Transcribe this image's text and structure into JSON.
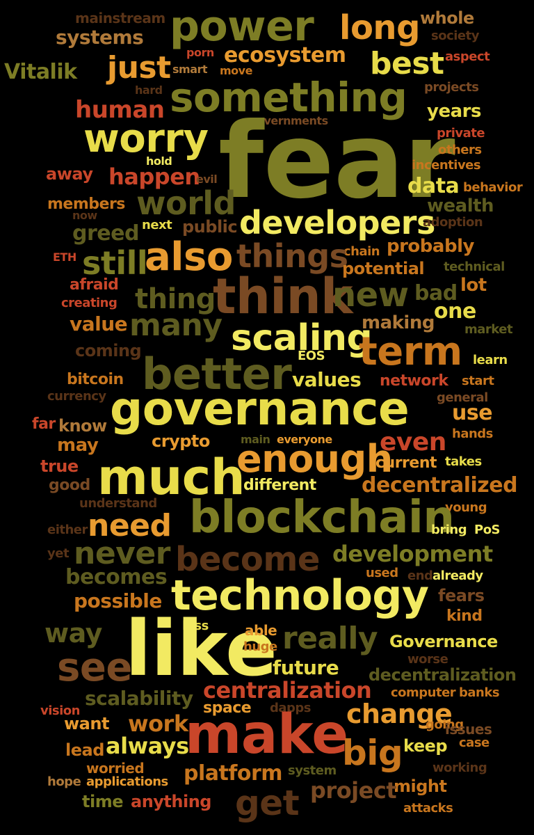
{
  "palette": {
    "background": "#000000",
    "olive": "#7d7d25",
    "dark_olive": "#5e5c20",
    "yellow": "#e8dc4a",
    "light_yellow": "#f2ea62",
    "orange": "#e89b30",
    "dark_orange": "#c8761e",
    "red_orange": "#c9462a",
    "brown": "#7a4a24",
    "tan": "#b07a3a",
    "dark_brown": "#5a3418"
  },
  "words": [
    "mainstream",
    "whole",
    "power",
    "long",
    "systems",
    "society",
    "porn",
    "ecosystem",
    "aspect",
    "Vitalik",
    "smart",
    "move",
    "just",
    "best",
    "something",
    "hard",
    "projects",
    "human",
    "years",
    "governments",
    "worry",
    "fear",
    "private",
    "others",
    "hold",
    "away",
    "incentives",
    "happen",
    "evil",
    "data",
    "behavior",
    "members",
    "world",
    "wealth",
    "now",
    "developers",
    "greed",
    "next",
    "public",
    "adoption",
    "chain",
    "probably",
    "ETH",
    "still",
    "also",
    "things",
    "potential",
    "technical",
    "afraid",
    "lot",
    "thing",
    "think",
    "creating",
    "new",
    "bad",
    "one",
    "value",
    "many",
    "making",
    "market",
    "scaling",
    "coming",
    "term",
    "EOS",
    "learn",
    "better",
    "bitcoin",
    "values",
    "network",
    "start",
    "currency",
    "governance",
    "general",
    "far",
    "know",
    "use",
    "may",
    "crypto",
    "main",
    "everyone",
    "hands",
    "even",
    "enough",
    "true",
    "current",
    "takes",
    "much",
    "good",
    "different",
    "decentralized",
    "understand",
    "young",
    "need",
    "blockchain",
    "either",
    "bring",
    "PoS",
    "never",
    "yet",
    "become",
    "development",
    "becomes",
    "used",
    "end",
    "already",
    "technology",
    "possible",
    "fears",
    "kind",
    "way",
    "less",
    "like",
    "able",
    "really",
    "Governance",
    "huge",
    "worse",
    "see",
    "future",
    "decentralization",
    "centralization",
    "computer",
    "banks",
    "scalability",
    "vision",
    "space",
    "dapps",
    "want",
    "work",
    "change",
    "going",
    "make",
    "issues",
    "lead",
    "always",
    "keep",
    "case",
    "big",
    "worried",
    "platform",
    "system",
    "working",
    "hope",
    "applications",
    "might",
    "get",
    "project",
    "time",
    "anything",
    "attacks"
  ]
}
